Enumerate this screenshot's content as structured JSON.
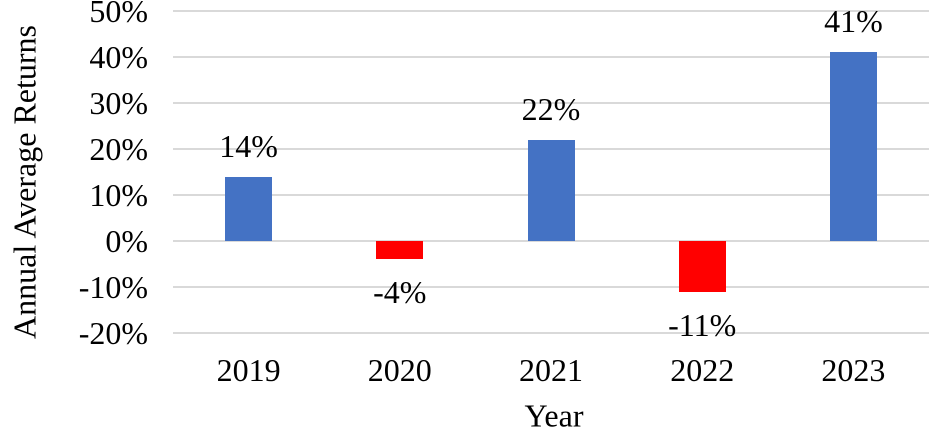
{
  "chart_data": {
    "type": "bar",
    "title": "",
    "xlabel": "Year",
    "ylabel": "Annual Average Returns",
    "categories": [
      "2019",
      "2020",
      "2021",
      "2022",
      "2023"
    ],
    "values": [
      14,
      -4,
      22,
      -11,
      41
    ],
    "data_labels": [
      "14%",
      "-4%",
      "22%",
      "-11%",
      "41%"
    ],
    "yticks": [
      {
        "label": "50%",
        "value": 50
      },
      {
        "label": "40%",
        "value": 40
      },
      {
        "label": "30%",
        "value": 30
      },
      {
        "label": "20%",
        "value": 20
      },
      {
        "label": "10%",
        "value": 10
      },
      {
        "label": "0%",
        "value": 0
      },
      {
        "label": "-10%",
        "value": -10
      },
      {
        "label": "-20%",
        "value": -20
      }
    ],
    "ylim": [
      -20,
      50
    ],
    "grid": true,
    "legend": "none",
    "colors": {
      "positive_bar": "#4472C4",
      "negative_bar": "#FF0000",
      "gridline": "#D9D9D9",
      "text": "#000000",
      "background": "#FFFFFF"
    }
  }
}
